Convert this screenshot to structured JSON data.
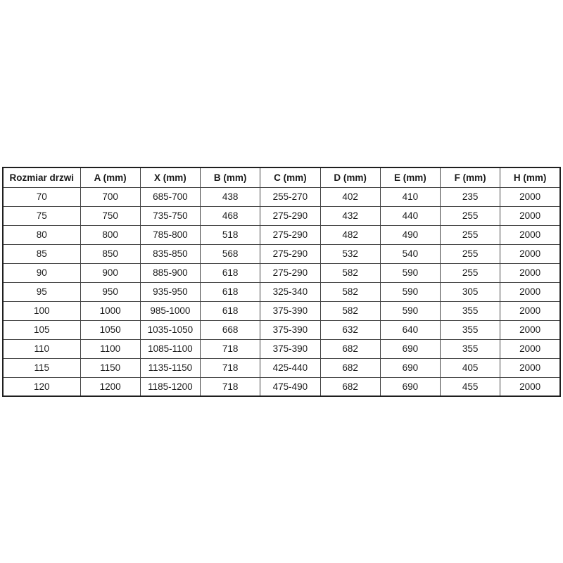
{
  "table": {
    "name": "door-dimensions-table",
    "headers": [
      "Rozmiar drzwi",
      "A (mm)",
      "X (mm)",
      "B (mm)",
      "C (mm)",
      "D (mm)",
      "E (mm)",
      "F (mm)",
      "H (mm)"
    ],
    "rows": [
      [
        "70",
        "700",
        "685-700",
        "438",
        "255-270",
        "402",
        "410",
        "235",
        "2000"
      ],
      [
        "75",
        "750",
        "735-750",
        "468",
        "275-290",
        "432",
        "440",
        "255",
        "2000"
      ],
      [
        "80",
        "800",
        "785-800",
        "518",
        "275-290",
        "482",
        "490",
        "255",
        "2000"
      ],
      [
        "85",
        "850",
        "835-850",
        "568",
        "275-290",
        "532",
        "540",
        "255",
        "2000"
      ],
      [
        "90",
        "900",
        "885-900",
        "618",
        "275-290",
        "582",
        "590",
        "255",
        "2000"
      ],
      [
        "95",
        "950",
        "935-950",
        "618",
        "325-340",
        "582",
        "590",
        "305",
        "2000"
      ],
      [
        "100",
        "1000",
        "985-1000",
        "618",
        "375-390",
        "582",
        "590",
        "355",
        "2000"
      ],
      [
        "105",
        "1050",
        "1035-1050",
        "668",
        "375-390",
        "632",
        "640",
        "355",
        "2000"
      ],
      [
        "110",
        "1100",
        "1085-1100",
        "718",
        "375-390",
        "682",
        "690",
        "355",
        "2000"
      ],
      [
        "115",
        "1150",
        "1135-1150",
        "718",
        "425-440",
        "682",
        "690",
        "405",
        "2000"
      ],
      [
        "120",
        "1200",
        "1185-1200",
        "718",
        "475-490",
        "682",
        "690",
        "455",
        "2000"
      ]
    ]
  },
  "colors": {
    "background": "#ffffff",
    "outer_border": "#1f1f1f",
    "inner_border": "#404040",
    "text": "#1a1a1a"
  }
}
